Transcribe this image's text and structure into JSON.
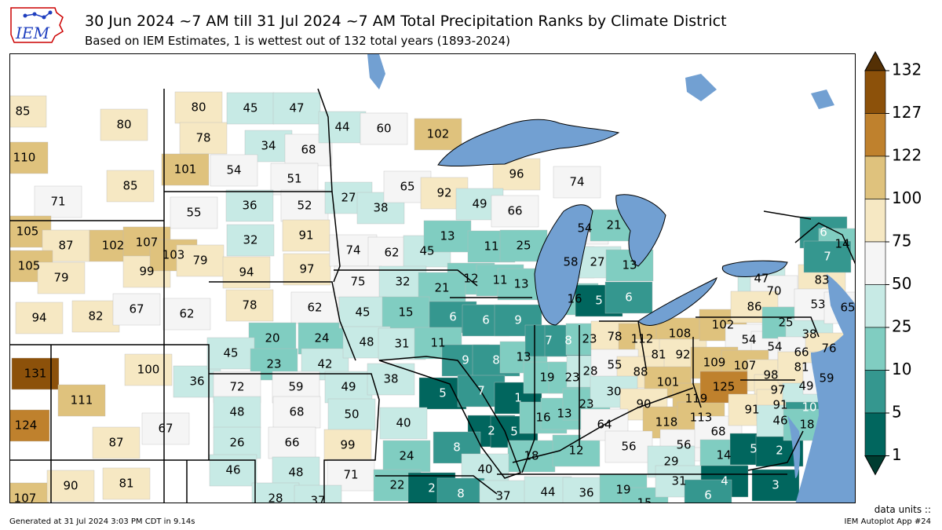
{
  "logo": {
    "text": "IEM",
    "icon": "iowa-state-outline-icon"
  },
  "header": {
    "title": "30 Jun 2024 ~7 AM till 31 Jul 2024 ~7 AM Total Precipitation Ranks by Climate District",
    "subtitle": "Based on IEM Estimates, 1 is wettest out of 132 total years (1893-2024)"
  },
  "colors": {
    "water": "#72a0d2",
    "border": "#000000",
    "bins": [
      {
        "range": [
          1,
          5
        ],
        "color": "#01665e"
      },
      {
        "range": [
          5,
          10
        ],
        "color": "#35978f"
      },
      {
        "range": [
          10,
          25
        ],
        "color": "#80cdc1"
      },
      {
        "range": [
          25,
          50
        ],
        "color": "#c7eae5"
      },
      {
        "range": [
          50,
          75
        ],
        "color": "#f5f5f5"
      },
      {
        "range": [
          75,
          100
        ],
        "color": "#f6e8c3"
      },
      {
        "range": [
          100,
          122
        ],
        "color": "#dfc27d"
      },
      {
        "range": [
          122,
          127
        ],
        "color": "#bf812d"
      },
      {
        "range": [
          127,
          132
        ],
        "color": "#8c510a"
      }
    ],
    "under": "#003c30",
    "over": "#543005"
  },
  "colorbar": {
    "labels": [
      "132",
      "127",
      "122",
      "100",
      "75",
      "50",
      "25",
      "10",
      "5",
      "1"
    ]
  },
  "districts": [
    {
      "rank": 85,
      "pos": [
        28,
        141
      ]
    },
    {
      "rank": 80,
      "pos": [
        157,
        158
      ]
    },
    {
      "rank": 110,
      "pos": [
        30,
        200
      ]
    },
    {
      "rank": 85,
      "pos": [
        165,
        236
      ]
    },
    {
      "rank": 71,
      "pos": [
        73,
        256
      ]
    },
    {
      "rank": 105,
      "pos": [
        34,
        294
      ]
    },
    {
      "rank": 87,
      "pos": [
        83,
        312
      ]
    },
    {
      "rank": 102,
      "pos": [
        143,
        312
      ]
    },
    {
      "rank": 107,
      "pos": [
        186,
        308
      ]
    },
    {
      "rank": 105,
      "pos": [
        36,
        338
      ]
    },
    {
      "rank": 79,
      "pos": [
        77,
        353
      ]
    },
    {
      "rank": 99,
      "pos": [
        186,
        345
      ]
    },
    {
      "rank": 103,
      "pos": [
        220,
        324
      ]
    },
    {
      "rank": 94,
      "pos": [
        49,
        404
      ]
    },
    {
      "rank": 82,
      "pos": [
        121,
        402
      ]
    },
    {
      "rank": 67,
      "pos": [
        173,
        393
      ]
    },
    {
      "rank": 62,
      "pos": [
        237,
        399
      ]
    },
    {
      "rank": 131,
      "pos": [
        44,
        475
      ]
    },
    {
      "rank": 100,
      "pos": [
        188,
        470
      ]
    },
    {
      "rank": 36,
      "pos": [
        250,
        485
      ]
    },
    {
      "rank": 111,
      "pos": [
        103,
        509
      ]
    },
    {
      "rank": 67,
      "pos": [
        210,
        545
      ]
    },
    {
      "rank": 124,
      "pos": [
        32,
        541
      ]
    },
    {
      "rank": 87,
      "pos": [
        147,
        563
      ]
    },
    {
      "rank": 107,
      "pos": [
        31,
        634
      ]
    },
    {
      "rank": 90,
      "pos": [
        89,
        618
      ]
    },
    {
      "rank": 81,
      "pos": [
        160,
        615
      ]
    },
    {
      "rank": 80,
      "pos": [
        252,
        136
      ]
    },
    {
      "rank": 45,
      "pos": [
        318,
        137
      ]
    },
    {
      "rank": 47,
      "pos": [
        377,
        137
      ]
    },
    {
      "rank": 78,
      "pos": [
        258,
        175
      ]
    },
    {
      "rank": 34,
      "pos": [
        341,
        185
      ]
    },
    {
      "rank": 68,
      "pos": [
        392,
        190
      ]
    },
    {
      "rank": 101,
      "pos": [
        235,
        215
      ]
    },
    {
      "rank": 54,
      "pos": [
        297,
        216
      ]
    },
    {
      "rank": 51,
      "pos": [
        374,
        227
      ]
    },
    {
      "rank": 55,
      "pos": [
        246,
        270
      ]
    },
    {
      "rank": 36,
      "pos": [
        317,
        261
      ]
    },
    {
      "rank": 52,
      "pos": [
        387,
        261
      ]
    },
    {
      "rank": 79,
      "pos": [
        254,
        331
      ]
    },
    {
      "rank": 32,
      "pos": [
        318,
        305
      ]
    },
    {
      "rank": 91,
      "pos": [
        389,
        299
      ]
    },
    {
      "rank": 94,
      "pos": [
        313,
        346
      ]
    },
    {
      "rank": 97,
      "pos": [
        390,
        342
      ]
    },
    {
      "rank": 78,
      "pos": [
        317,
        388
      ]
    },
    {
      "rank": 62,
      "pos": [
        400,
        391
      ]
    },
    {
      "rank": 20,
      "pos": [
        346,
        430
      ]
    },
    {
      "rank": 24,
      "pos": [
        409,
        430
      ]
    },
    {
      "rank": 45,
      "pos": [
        293,
        449
      ]
    },
    {
      "rank": 23,
      "pos": [
        348,
        463
      ]
    },
    {
      "rank": 42,
      "pos": [
        413,
        463
      ]
    },
    {
      "rank": 72,
      "pos": [
        301,
        492
      ]
    },
    {
      "rank": 59,
      "pos": [
        376,
        492
      ]
    },
    {
      "rank": 49,
      "pos": [
        443,
        492
      ]
    },
    {
      "rank": 48,
      "pos": [
        301,
        524
      ]
    },
    {
      "rank": 68,
      "pos": [
        377,
        524
      ]
    },
    {
      "rank": 50,
      "pos": [
        447,
        527
      ]
    },
    {
      "rank": 26,
      "pos": [
        301,
        563
      ]
    },
    {
      "rank": 66,
      "pos": [
        371,
        563
      ]
    },
    {
      "rank": 99,
      "pos": [
        442,
        566
      ]
    },
    {
      "rank": 46,
      "pos": [
        296,
        598
      ]
    },
    {
      "rank": 48,
      "pos": [
        376,
        601
      ]
    },
    {
      "rank": 71,
      "pos": [
        446,
        604
      ]
    },
    {
      "rank": 28,
      "pos": [
        350,
        634
      ]
    },
    {
      "rank": 37,
      "pos": [
        404,
        637
      ]
    },
    {
      "rank": 44,
      "pos": [
        435,
        161
      ]
    },
    {
      "rank": 60,
      "pos": [
        488,
        163
      ]
    },
    {
      "rank": 102,
      "pos": [
        557,
        170
      ]
    },
    {
      "rank": 27,
      "pos": [
        443,
        251
      ]
    },
    {
      "rank": 38,
      "pos": [
        484,
        264
      ]
    },
    {
      "rank": 65,
      "pos": [
        518,
        237
      ]
    },
    {
      "rank": 74,
      "pos": [
        449,
        318
      ]
    },
    {
      "rank": 62,
      "pos": [
        498,
        321
      ]
    },
    {
      "rank": 45,
      "pos": [
        543,
        319
      ]
    },
    {
      "rank": 96,
      "pos": [
        657,
        221
      ]
    },
    {
      "rank": 74,
      "pos": [
        734,
        231
      ]
    },
    {
      "rank": 92,
      "pos": [
        565,
        245
      ]
    },
    {
      "rank": 49,
      "pos": [
        610,
        259
      ]
    },
    {
      "rank": 66,
      "pos": [
        655,
        268
      ]
    },
    {
      "rank": 13,
      "pos": [
        569,
        300
      ]
    },
    {
      "rank": 11,
      "pos": [
        625,
        313
      ]
    },
    {
      "rank": 25,
      "pos": [
        666,
        312
      ]
    },
    {
      "rank": 12,
      "pos": [
        599,
        354
      ]
    },
    {
      "rank": 11,
      "pos": [
        636,
        356
      ]
    },
    {
      "rank": 13,
      "pos": [
        663,
        361
      ]
    },
    {
      "rank": 75,
      "pos": [
        455,
        358
      ]
    },
    {
      "rank": 32,
      "pos": [
        512,
        358
      ]
    },
    {
      "rank": 21,
      "pos": [
        562,
        366
      ]
    },
    {
      "rank": 45,
      "pos": [
        461,
        397
      ]
    },
    {
      "rank": 15,
      "pos": [
        516,
        397
      ]
    },
    {
      "rank": 6,
      "pos": [
        576,
        403
      ]
    },
    {
      "rank": 48,
      "pos": [
        466,
        435
      ]
    },
    {
      "rank": 31,
      "pos": [
        511,
        437
      ]
    },
    {
      "rank": 11,
      "pos": [
        557,
        436
      ]
    },
    {
      "rank": 6,
      "pos": [
        618,
        407
      ]
    },
    {
      "rank": 9,
      "pos": [
        659,
        407
      ]
    },
    {
      "rank": 9,
      "pos": [
        592,
        458
      ]
    },
    {
      "rank": 8,
      "pos": [
        631,
        458
      ]
    },
    {
      "rank": 13,
      "pos": [
        666,
        454
      ]
    },
    {
      "rank": 38,
      "pos": [
        497,
        482
      ]
    },
    {
      "rank": 5,
      "pos": [
        563,
        500
      ]
    },
    {
      "rank": 7,
      "pos": [
        612,
        497
      ]
    },
    {
      "rank": 1,
      "pos": [
        659,
        506
      ]
    },
    {
      "rank": 40,
      "pos": [
        513,
        538
      ]
    },
    {
      "rank": 2,
      "pos": [
        625,
        548
      ]
    },
    {
      "rank": 5,
      "pos": [
        654,
        549
      ]
    },
    {
      "rank": 8,
      "pos": [
        581,
        569
      ]
    },
    {
      "rank": 24,
      "pos": [
        517,
        580
      ]
    },
    {
      "rank": 18,
      "pos": [
        676,
        580
      ]
    },
    {
      "rank": 40,
      "pos": [
        617,
        597
      ]
    },
    {
      "rank": 22,
      "pos": [
        505,
        617
      ]
    },
    {
      "rank": 2,
      "pos": [
        549,
        621
      ]
    },
    {
      "rank": 8,
      "pos": [
        586,
        628
      ]
    },
    {
      "rank": 37,
      "pos": [
        640,
        631
      ]
    },
    {
      "rank": 44,
      "pos": [
        697,
        626
      ]
    },
    {
      "rank": 36,
      "pos": [
        746,
        627
      ]
    },
    {
      "rank": 19,
      "pos": [
        793,
        623
      ]
    },
    {
      "rank": 15,
      "pos": [
        820,
        640
      ]
    },
    {
      "rank": 7,
      "pos": [
        698,
        433
      ]
    },
    {
      "rank": 8,
      "pos": [
        723,
        433
      ]
    },
    {
      "rank": 23,
      "pos": [
        750,
        431
      ]
    },
    {
      "rank": 19,
      "pos": [
        696,
        480
      ]
    },
    {
      "rank": 23,
      "pos": [
        728,
        480
      ]
    },
    {
      "rank": 28,
      "pos": [
        751,
        472
      ]
    },
    {
      "rank": 16,
      "pos": [
        691,
        531
      ]
    },
    {
      "rank": 13,
      "pos": [
        718,
        526
      ]
    },
    {
      "rank": 23,
      "pos": [
        746,
        514
      ]
    },
    {
      "rank": 12,
      "pos": [
        733,
        573
      ]
    },
    {
      "rank": 54,
      "pos": [
        744,
        290
      ]
    },
    {
      "rank": 21,
      "pos": [
        781,
        286
      ]
    },
    {
      "rank": 58,
      "pos": [
        726,
        333
      ]
    },
    {
      "rank": 27,
      "pos": [
        760,
        333
      ]
    },
    {
      "rank": 13,
      "pos": [
        801,
        337
      ]
    },
    {
      "rank": 16,
      "pos": [
        731,
        380
      ]
    },
    {
      "rank": 5,
      "pos": [
        762,
        382
      ]
    },
    {
      "rank": 6,
      "pos": [
        800,
        378
      ]
    },
    {
      "rank": 78,
      "pos": [
        782,
        428
      ]
    },
    {
      "rank": 112,
      "pos": [
        817,
        431
      ]
    },
    {
      "rank": 108,
      "pos": [
        865,
        424
      ]
    },
    {
      "rank": 81,
      "pos": [
        838,
        451
      ]
    },
    {
      "rank": 92,
      "pos": [
        869,
        451
      ]
    },
    {
      "rank": 55,
      "pos": [
        782,
        464
      ]
    },
    {
      "rank": 88,
      "pos": [
        815,
        473
      ]
    },
    {
      "rank": 101,
      "pos": [
        850,
        486
      ]
    },
    {
      "rank": 30,
      "pos": [
        781,
        498
      ]
    },
    {
      "rank": 90,
      "pos": [
        819,
        514
      ]
    },
    {
      "rank": 119,
      "pos": [
        886,
        507
      ]
    },
    {
      "rank": 118,
      "pos": [
        848,
        537
      ]
    },
    {
      "rank": 113,
      "pos": [
        892,
        531
      ]
    },
    {
      "rank": 64,
      "pos": [
        769,
        540
      ]
    },
    {
      "rank": 56,
      "pos": [
        800,
        568
      ]
    },
    {
      "rank": 56,
      "pos": [
        870,
        566
      ]
    },
    {
      "rank": 29,
      "pos": [
        854,
        587
      ]
    },
    {
      "rank": 68,
      "pos": [
        914,
        549
      ]
    },
    {
      "rank": 14,
      "pos": [
        921,
        579
      ]
    },
    {
      "rank": 5,
      "pos": [
        959,
        571
      ]
    },
    {
      "rank": 2,
      "pos": [
        992,
        573
      ]
    },
    {
      "rank": 31,
      "pos": [
        864,
        612
      ]
    },
    {
      "rank": 4,
      "pos": [
        922,
        612
      ]
    },
    {
      "rank": 6,
      "pos": [
        901,
        630
      ]
    },
    {
      "rank": 3,
      "pos": [
        987,
        617
      ]
    },
    {
      "rank": 102,
      "pos": [
        920,
        413
      ]
    },
    {
      "rank": 54,
      "pos": [
        953,
        432
      ]
    },
    {
      "rank": 54,
      "pos": [
        986,
        441
      ]
    },
    {
      "rank": 109,
      "pos": [
        909,
        461
      ]
    },
    {
      "rank": 107,
      "pos": [
        948,
        465
      ]
    },
    {
      "rank": 98,
      "pos": [
        981,
        477
      ]
    },
    {
      "rank": 125,
      "pos": [
        921,
        492
      ]
    },
    {
      "rank": 97,
      "pos": [
        990,
        496
      ]
    },
    {
      "rank": 91,
      "pos": [
        957,
        521
      ]
    },
    {
      "rank": 91,
      "pos": [
        993,
        515
      ]
    },
    {
      "rank": 46,
      "pos": [
        993,
        535
      ]
    },
    {
      "rank": 10,
      "pos": [
        1030,
        518
      ]
    },
    {
      "rank": 18,
      "pos": [
        1027,
        540
      ]
    },
    {
      "rank": 49,
      "pos": [
        1026,
        491
      ]
    },
    {
      "rank": 47,
      "pos": [
        969,
        354
      ]
    },
    {
      "rank": 70,
      "pos": [
        985,
        370
      ]
    },
    {
      "rank": 86,
      "pos": [
        960,
        390
      ]
    },
    {
      "rank": 25,
      "pos": [
        1000,
        410
      ]
    },
    {
      "rank": 38,
      "pos": [
        1030,
        425
      ]
    },
    {
      "rank": 66,
      "pos": [
        1020,
        448
      ]
    },
    {
      "rank": 76,
      "pos": [
        1055,
        443
      ]
    },
    {
      "rank": 81,
      "pos": [
        1020,
        467
      ]
    },
    {
      "rank": 59,
      "pos": [
        1052,
        481
      ]
    },
    {
      "rank": 83,
      "pos": [
        1046,
        356
      ]
    },
    {
      "rank": 53,
      "pos": [
        1041,
        387
      ]
    },
    {
      "rank": 65,
      "pos": [
        1079,
        391
      ]
    },
    {
      "rank": 6,
      "pos": [
        1048,
        295
      ]
    },
    {
      "rank": 14,
      "pos": [
        1072,
        310
      ]
    },
    {
      "rank": 7,
      "pos": [
        1053,
        326
      ]
    }
  ],
  "footer": {
    "generated": "Generated at 31 Jul 2024 3:03 PM CDT in 9.14s",
    "units": "data units ::",
    "app": "IEM Autoplot App #24"
  }
}
